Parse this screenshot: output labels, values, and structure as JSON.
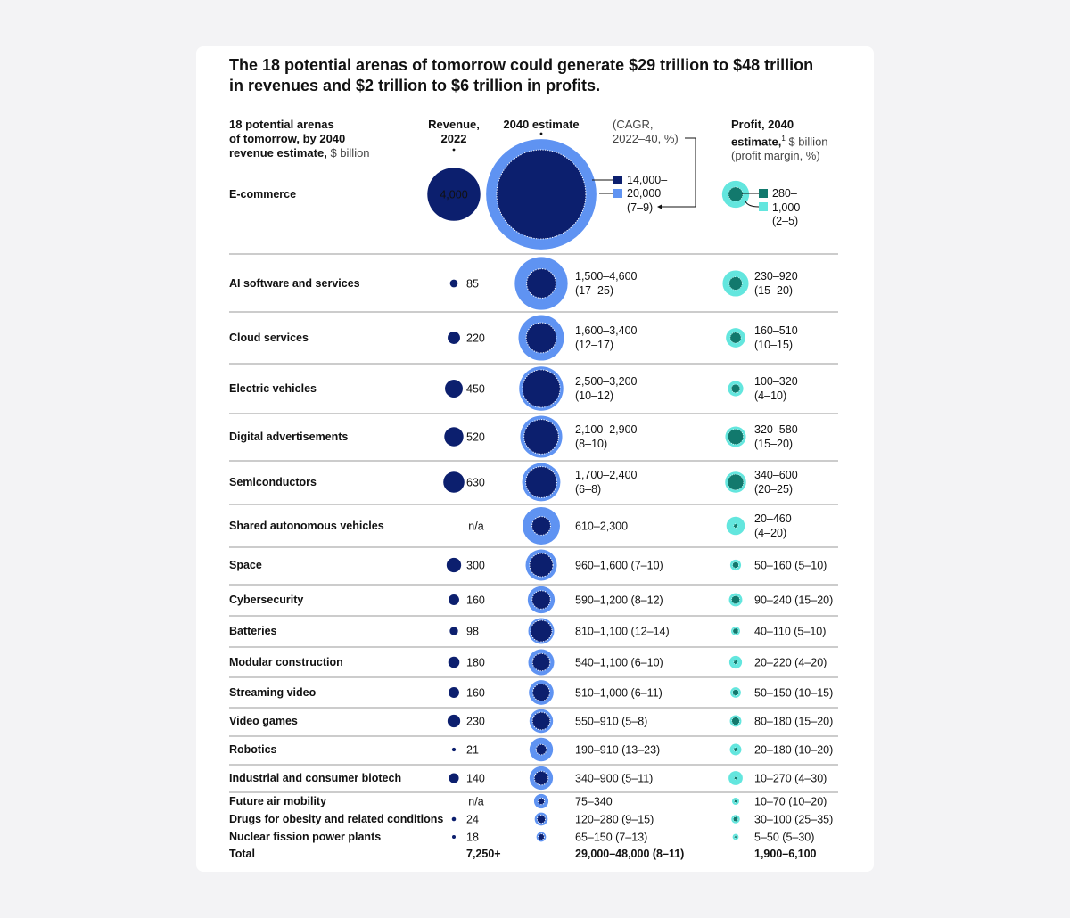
{
  "title": "The 18 potential arenas of tomorrow could generate $29 trillion to $48 trillion in revenues and $2 trillion to $6 trillion in profits.",
  "headers": {
    "arenas": [
      "18 potential arenas",
      "of tomorrow, by 2040",
      "revenue estimate,"
    ],
    "arenas_unit": " $ billion",
    "revenue": [
      "Revenue,",
      "2022"
    ],
    "estimate": "2040 estimate",
    "cagr": [
      "(CAGR,",
      "2022–40, %)"
    ],
    "profit_bold": [
      "Profit, 2040",
      "estimate,"
    ],
    "profit_sup": "1",
    "profit_unit": " $ billion",
    "profit_margin": "(profit margin, %)"
  },
  "ecommerce_legend": {
    "revenue_lines": [
      "14,000–",
      "20,000",
      "(7–9)"
    ],
    "profit_lines": [
      "280–",
      "1,000",
      "(2–5)"
    ]
  },
  "chart_data": {
    "type": "table",
    "columns": [
      "18 potential arenas of tomorrow, by 2040 revenue estimate, $ billion",
      "Revenue, 2022",
      "2040 estimate (CAGR, 2022–40, %)",
      "Profit, 2040 estimate, $ billion (profit margin, %)"
    ],
    "rows": [
      {
        "name": "E-commerce",
        "revenue_2022": 4000,
        "revenue_2022_label": "4,000",
        "rev_low": 14000,
        "rev_high": 20000,
        "estimate_label": "14,000–20,000",
        "cagr_label": "(7–9)",
        "profit_low": 280,
        "profit_high": 1000,
        "profit_label": "280–1,000",
        "margin_label": "(2–5)"
      },
      {
        "name": "AI software and services",
        "revenue_2022": 85,
        "revenue_2022_label": "85",
        "rev_low": 1500,
        "rev_high": 4600,
        "estimate_label": "1,500–4,600",
        "cagr_label": "(17–25)",
        "profit_low": 230,
        "profit_high": 920,
        "profit_label": "230–920",
        "margin_label": "(15–20)"
      },
      {
        "name": "Cloud services",
        "revenue_2022": 220,
        "revenue_2022_label": "220",
        "rev_low": 1600,
        "rev_high": 3400,
        "estimate_label": "1,600–3,400",
        "cagr_label": "(12–17)",
        "profit_low": 160,
        "profit_high": 510,
        "profit_label": "160–510",
        "margin_label": "(10–15)"
      },
      {
        "name": "Electric vehicles",
        "revenue_2022": 450,
        "revenue_2022_label": "450",
        "rev_low": 2500,
        "rev_high": 3200,
        "estimate_label": "2,500–3,200",
        "cagr_label": "(10–12)",
        "profit_low": 100,
        "profit_high": 320,
        "profit_label": "100–320",
        "margin_label": "(4–10)"
      },
      {
        "name": "Digital advertisements",
        "revenue_2022": 520,
        "revenue_2022_label": "520",
        "rev_low": 2100,
        "rev_high": 2900,
        "estimate_label": "2,100–2,900",
        "cagr_label": "(8–10)",
        "profit_low": 320,
        "profit_high": 580,
        "profit_label": "320–580",
        "margin_label": "(15–20)"
      },
      {
        "name": "Semiconductors",
        "revenue_2022": 630,
        "revenue_2022_label": "630",
        "rev_low": 1700,
        "rev_high": 2400,
        "estimate_label": "1,700–2,400",
        "cagr_label": "(6–8)",
        "profit_low": 340,
        "profit_high": 600,
        "profit_label": "340–600",
        "margin_label": "(20–25)"
      },
      {
        "name": "Shared autonomous vehicles",
        "revenue_2022": null,
        "revenue_2022_label": "n/a",
        "rev_low": 610,
        "rev_high": 2300,
        "estimate_label": "610–2,300",
        "cagr_label": "",
        "profit_low": 20,
        "profit_high": 460,
        "profit_label": "20–460",
        "margin_label": "(4–20)"
      },
      {
        "name": "Space",
        "revenue_2022": 300,
        "revenue_2022_label": "300",
        "rev_low": 960,
        "rev_high": 1600,
        "estimate_label": "960–1,600 (7–10)",
        "cagr_label": "",
        "profit_low": 50,
        "profit_high": 160,
        "profit_label": "50–160 (5–10)",
        "margin_label": ""
      },
      {
        "name": "Cybersecurity",
        "revenue_2022": 160,
        "revenue_2022_label": "160",
        "rev_low": 590,
        "rev_high": 1200,
        "estimate_label": "590–1,200 (8–12)",
        "cagr_label": "",
        "profit_low": 90,
        "profit_high": 240,
        "profit_label": "90–240 (15–20)",
        "margin_label": ""
      },
      {
        "name": "Batteries",
        "revenue_2022": 98,
        "revenue_2022_label": "98",
        "rev_low": 810,
        "rev_high": 1100,
        "estimate_label": "810–1,100 (12–14)",
        "cagr_label": "",
        "profit_low": 40,
        "profit_high": 110,
        "profit_label": "40–110 (5–10)",
        "margin_label": ""
      },
      {
        "name": "Modular construction",
        "revenue_2022": 180,
        "revenue_2022_label": "180",
        "rev_low": 540,
        "rev_high": 1100,
        "estimate_label": "540–1,100 (6–10)",
        "cagr_label": "",
        "profit_low": 20,
        "profit_high": 220,
        "profit_label": "20–220 (4–20)",
        "margin_label": ""
      },
      {
        "name": "Streaming video",
        "revenue_2022": 160,
        "revenue_2022_label": "160",
        "rev_low": 510,
        "rev_high": 1000,
        "estimate_label": "510–1,000 (6–11)",
        "cagr_label": "",
        "profit_low": 50,
        "profit_high": 150,
        "profit_label": "50–150 (10–15)",
        "margin_label": ""
      },
      {
        "name": "Video games",
        "revenue_2022": 230,
        "revenue_2022_label": "230",
        "rev_low": 550,
        "rev_high": 910,
        "estimate_label": "550–910 (5–8)",
        "cagr_label": "",
        "profit_low": 80,
        "profit_high": 180,
        "profit_label": "80–180 (15–20)",
        "margin_label": ""
      },
      {
        "name": "Robotics",
        "revenue_2022": 21,
        "revenue_2022_label": "21",
        "rev_low": 190,
        "rev_high": 910,
        "estimate_label": "190–910 (13–23)",
        "cagr_label": "",
        "profit_low": 20,
        "profit_high": 180,
        "profit_label": "20–180 (10–20)",
        "margin_label": ""
      },
      {
        "name": "Industrial and consumer biotech",
        "revenue_2022": 140,
        "revenue_2022_label": "140",
        "rev_low": 340,
        "rev_high": 900,
        "estimate_label": "340–900 (5–11)",
        "cagr_label": "",
        "profit_low": 10,
        "profit_high": 270,
        "profit_label": "10–270 (4–30)",
        "margin_label": ""
      },
      {
        "name": "Future air mobility",
        "revenue_2022": null,
        "revenue_2022_label": "n/a",
        "rev_low": 75,
        "rev_high": 340,
        "estimate_label": "75–340",
        "cagr_label": "",
        "profit_low": 10,
        "profit_high": 70,
        "profit_label": "10–70 (10–20)",
        "margin_label": ""
      },
      {
        "name": "Drugs for obesity and related conditions",
        "revenue_2022": 24,
        "revenue_2022_label": "24",
        "rev_low": 120,
        "rev_high": 280,
        "estimate_label": "120–280 (9–15)",
        "cagr_label": "",
        "profit_low": 30,
        "profit_high": 100,
        "profit_label": "30–100 (25–35)",
        "margin_label": ""
      },
      {
        "name": "Nuclear fission power plants",
        "revenue_2022": 18,
        "revenue_2022_label": "18",
        "rev_low": 65,
        "rev_high": 150,
        "estimate_label": "65–150 (7–13)",
        "cagr_label": "",
        "profit_low": 5,
        "profit_high": 50,
        "profit_label": "5–50 (5–30)",
        "margin_label": ""
      }
    ],
    "total": {
      "name": "Total",
      "revenue_2022_label": "7,250+",
      "estimate_label": "29,000–48,000 (8–11)",
      "profit_label": "1,900–6,100"
    }
  },
  "colors": {
    "navy": "#0c1f6e",
    "light_blue": "#5f93f2",
    "teal": "#12796d",
    "aqua": "#63e6de",
    "rule": "#9a9a9a"
  }
}
